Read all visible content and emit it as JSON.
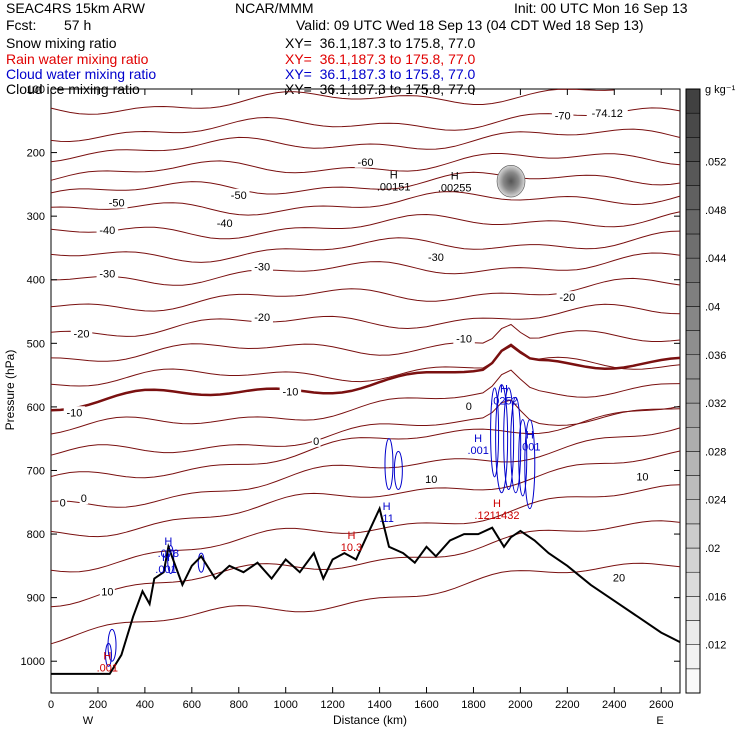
{
  "header": {
    "model": "SEAC4RS 15km ARW",
    "org": "NCAR/MMM",
    "init": "Init: 00 UTC Mon 16 Sep 13",
    "fcst_label": "Fcst:",
    "fcst_value": "57 h",
    "valid": "Valid: 09 UTC Wed 18 Sep 13 (04 CDT Wed 18 Sep 13)"
  },
  "fields": [
    {
      "name": "Snow mixing ratio",
      "xy": "XY=  36.1,187.3 to 175.8, 77.0",
      "color": "#000000"
    },
    {
      "name": "Rain water mixing ratio",
      "xy": "XY=  36.1,187.3 to 175.8, 77.0",
      "color": "#e00000"
    },
    {
      "name": "Cloud water mixing ratio",
      "xy": "XY=  36.1,187.3 to 175.8, 77.0",
      "color": "#0000cc"
    },
    {
      "name": "Cloud ice mixing ratio",
      "xy": "XY=  36.1,187.3 to 175.8, 77.0",
      "color": "#000000"
    }
  ],
  "chart_data": {
    "type": "cross-section",
    "xlabel": "Distance (km)",
    "ylabel": "Pressure (hPa)",
    "xlim": [
      0,
      2680
    ],
    "ylim": [
      1050,
      100
    ],
    "xticks": [
      "0",
      "200",
      "400",
      "600",
      "800",
      "1000",
      "1200",
      "1400",
      "1600",
      "1800",
      "2000",
      "2200",
      "2400",
      "2600"
    ],
    "yticks": [
      "100",
      "200",
      "300",
      "400",
      "500",
      "600",
      "700",
      "800",
      "900",
      "1000"
    ],
    "x_end_labels": {
      "left": "W",
      "right": "E"
    },
    "colorbar": {
      "unit": "g kg⁻¹",
      "ticks": [
        ".012",
        ".016",
        ".02",
        ".024",
        ".028",
        ".032",
        ".036",
        ".04",
        ".044",
        ".048",
        ".052"
      ],
      "range": [
        0.008,
        0.058
      ]
    },
    "temperature_contour_labels": [
      {
        "text": "-70",
        "x": 2180,
        "p": 143
      },
      {
        "text": "-74.12",
        "x": 2370,
        "p": 139
      },
      {
        "text": "-60",
        "x": 1340,
        "p": 216
      },
      {
        "text": "-50",
        "x": 280,
        "p": 280
      },
      {
        "text": "-50",
        "x": 800,
        "p": 268
      },
      {
        "text": "-40",
        "x": 240,
        "p": 323
      },
      {
        "text": "-40",
        "x": 740,
        "p": 312
      },
      {
        "text": "-30",
        "x": 240,
        "p": 392
      },
      {
        "text": "-30",
        "x": 900,
        "p": 381
      },
      {
        "text": "-30",
        "x": 1640,
        "p": 366
      },
      {
        "text": "-20",
        "x": 130,
        "p": 486
      },
      {
        "text": "-20",
        "x": 900,
        "p": 460
      },
      {
        "text": "-20",
        "x": 2200,
        "p": 429
      },
      {
        "text": "-10",
        "x": 1020,
        "p": 577
      },
      {
        "text": "-10",
        "x": 1760,
        "p": 494
      },
      {
        "text": "-10",
        "x": 100,
        "p": 610
      },
      {
        "text": "0",
        "x": 1130,
        "p": 655
      },
      {
        "text": "0",
        "x": 1780,
        "p": 600
      },
      {
        "text": "0",
        "x": 50,
        "p": 752
      },
      {
        "text": "0",
        "x": 140,
        "p": 745
      },
      {
        "text": "10",
        "x": 1620,
        "p": 715
      },
      {
        "text": "10",
        "x": 2520,
        "p": 711
      },
      {
        "text": "10",
        "x": 240,
        "p": 892
      },
      {
        "text": "20",
        "x": 2420,
        "p": 870
      }
    ],
    "extremum_labels": [
      {
        "kind": "H",
        "value": ".00151",
        "x": 1460,
        "p": 253,
        "color": "#000000"
      },
      {
        "kind": "H",
        "value": ".00255",
        "x": 1720,
        "p": 255,
        "color": "#000000"
      },
      {
        "kind": "H",
        "value": ".1211432",
        "x": 1900,
        "p": 770,
        "color": "#cc0000"
      },
      {
        "kind": "H",
        "value": "10.3",
        "x": 1280,
        "p": 820,
        "color": "#cc0000"
      },
      {
        "kind": "H",
        "value": ".11",
        "x": 1430,
        "p": 775,
        "color": "#0000cc"
      },
      {
        "kind": "H",
        "value": ".001",
        "x": 1820,
        "p": 668,
        "color": "#0000cc"
      },
      {
        "kind": "H",
        "value": ".001",
        "x": 2040,
        "p": 662,
        "color": "#0000cc"
      },
      {
        "kind": "H",
        "value": ".0252",
        "x": 1930,
        "p": 590,
        "color": "#0000cc"
      },
      {
        "kind": "H",
        "value": ".078",
        "x": 500,
        "p": 830,
        "color": "#0000cc"
      },
      {
        "kind": "H",
        "value": ".001",
        "x": 490,
        "p": 855,
        "color": "#0000cc"
      },
      {
        "kind": "H",
        "value": ".001",
        "x": 240,
        "p": 1010,
        "color": "#cc0000"
      }
    ],
    "terrain": {
      "x": [
        0,
        250,
        300,
        350,
        390,
        420,
        440,
        480,
        500,
        560,
        600,
        640,
        700,
        760,
        820,
        880,
        940,
        1000,
        1060,
        1120,
        1160,
        1200,
        1250,
        1300,
        1350,
        1400,
        1440,
        1500,
        1550,
        1600,
        1640,
        1700,
        1760,
        1820,
        1880,
        1930,
        1960,
        2000,
        2060,
        2120,
        2200,
        2300,
        2400,
        2500,
        2600,
        2680
      ],
      "p": [
        1020,
        1020,
        990,
        930,
        890,
        910,
        870,
        860,
        820,
        880,
        850,
        835,
        870,
        850,
        860,
        845,
        870,
        840,
        860,
        830,
        870,
        840,
        830,
        840,
        800,
        760,
        820,
        830,
        845,
        820,
        835,
        810,
        800,
        800,
        790,
        820,
        805,
        795,
        810,
        830,
        850,
        880,
        905,
        930,
        955,
        970
      ]
    }
  }
}
